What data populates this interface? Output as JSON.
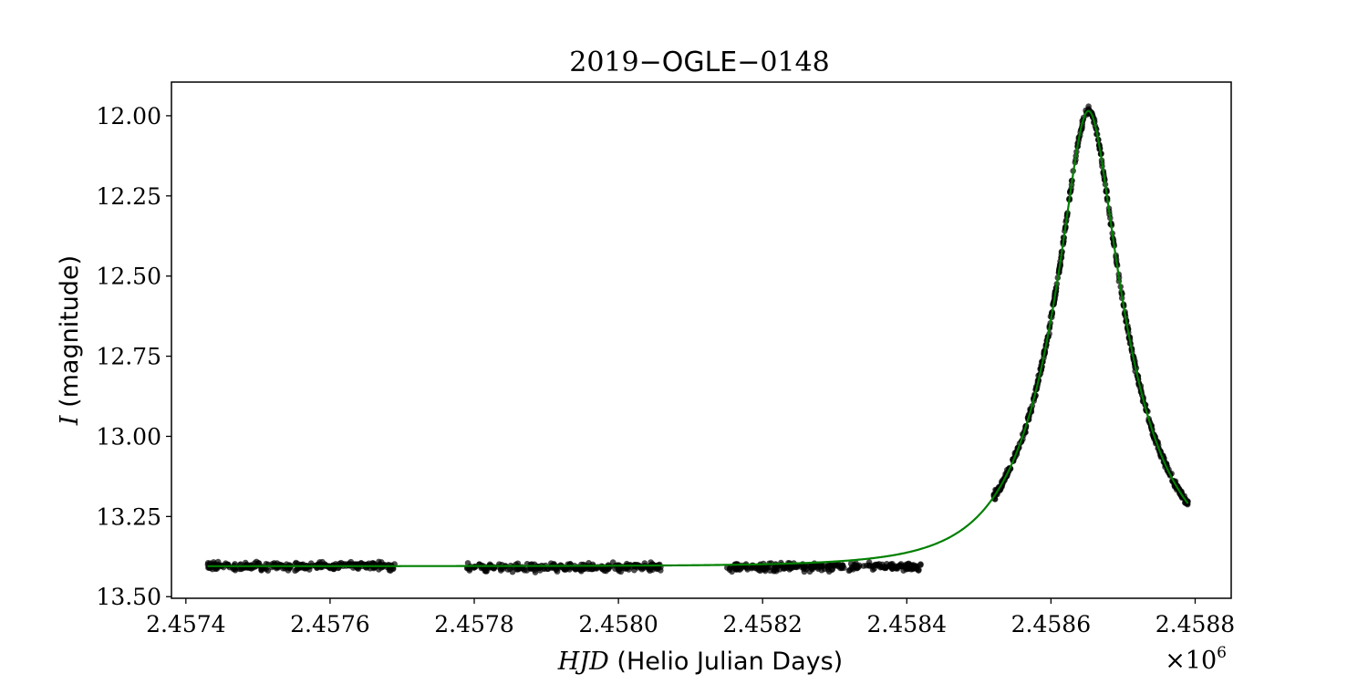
{
  "chart_data": {
    "type": "scatter",
    "title_parts": [
      "2019",
      "−",
      "OGLE",
      "−",
      "0148"
    ],
    "title": "2019−OGLE−0148",
    "xlabel_italic": "HJD",
    "xlabel_rest": " (Helio Julian Days)",
    "xlabel": "HJD (Helio Julian Days)",
    "ylabel_italic": "I",
    "ylabel_rest": " (magnitude)",
    "ylabel": "I (magnitude)",
    "x_offset_text_base": "×10",
    "x_offset_text_exp": "6",
    "x_scale_factor": 1000000,
    "xlim": [
      2.45738,
      2.45885
    ],
    "ylim": [
      13.505,
      11.895
    ],
    "y_inverted": true,
    "x_ticks": [
      2.4574,
      2.4576,
      2.4578,
      2.458,
      2.4582,
      2.4584,
      2.4586,
      2.4588
    ],
    "x_tick_labels": [
      "2.4574",
      "2.4576",
      "2.4578",
      "2.4580",
      "2.4582",
      "2.4584",
      "2.4586",
      "2.4588"
    ],
    "y_ticks": [
      12.0,
      12.25,
      12.5,
      12.75,
      13.0,
      13.25,
      13.5
    ],
    "y_tick_labels": [
      "12.00",
      "12.25",
      "12.50",
      "12.75",
      "13.00",
      "13.25",
      "13.50"
    ],
    "grid": false,
    "model": {
      "name": "",
      "color": "#008000",
      "baseline_mag": 13.405,
      "x_start": 2.45743,
      "x_end": 2.45879,
      "peak_x": 2.458652,
      "peak_mag": 11.985,
      "t_E_1e6_days": 0.00011
    },
    "observation_seasons": [
      {
        "x_start": 2.45743,
        "x_end": 2.45769,
        "baseline_mag": 13.405
      },
      {
        "x_start": 2.45779,
        "x_end": 2.45806,
        "baseline_mag": 13.408
      },
      {
        "x_start": 2.45815,
        "x_end": 2.45842,
        "baseline_mag": 13.407
      },
      {
        "x_start": 2.45852,
        "x_end": 2.45879,
        "baseline_mag": null,
        "follows_model": true
      }
    ],
    "points_color": "#000000",
    "points_alpha": 0.7
  }
}
